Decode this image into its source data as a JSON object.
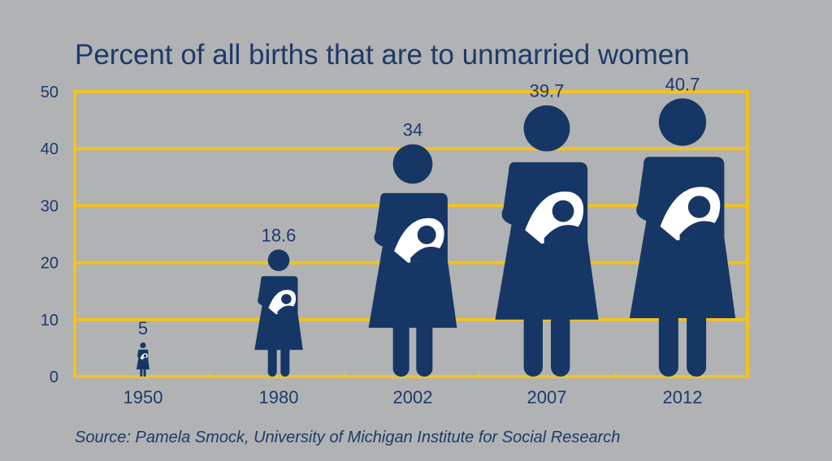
{
  "chart_data": {
    "type": "bar",
    "title": "Percent of all births that are to unmarried women",
    "source": "Source: Pamela Smock, University of Michigan Institute for Social Research",
    "categories": [
      "1950",
      "1980",
      "2002",
      "2007",
      "2012"
    ],
    "values": [
      5,
      18.6,
      34,
      39.7,
      40.7
    ],
    "value_labels": [
      "5",
      "18.6",
      "34",
      "39.7",
      "40.7"
    ],
    "ylim": [
      0,
      50
    ],
    "yticks": [
      0,
      10,
      20,
      30,
      40,
      50
    ],
    "grid": true,
    "mark": "pictogram-mother-with-baby",
    "colors": {
      "background": "#b1b2b4",
      "grid": "#f2c31b",
      "figure": "#163765",
      "figure_baby": "#ffffff",
      "text": "#1e3a6a"
    }
  }
}
